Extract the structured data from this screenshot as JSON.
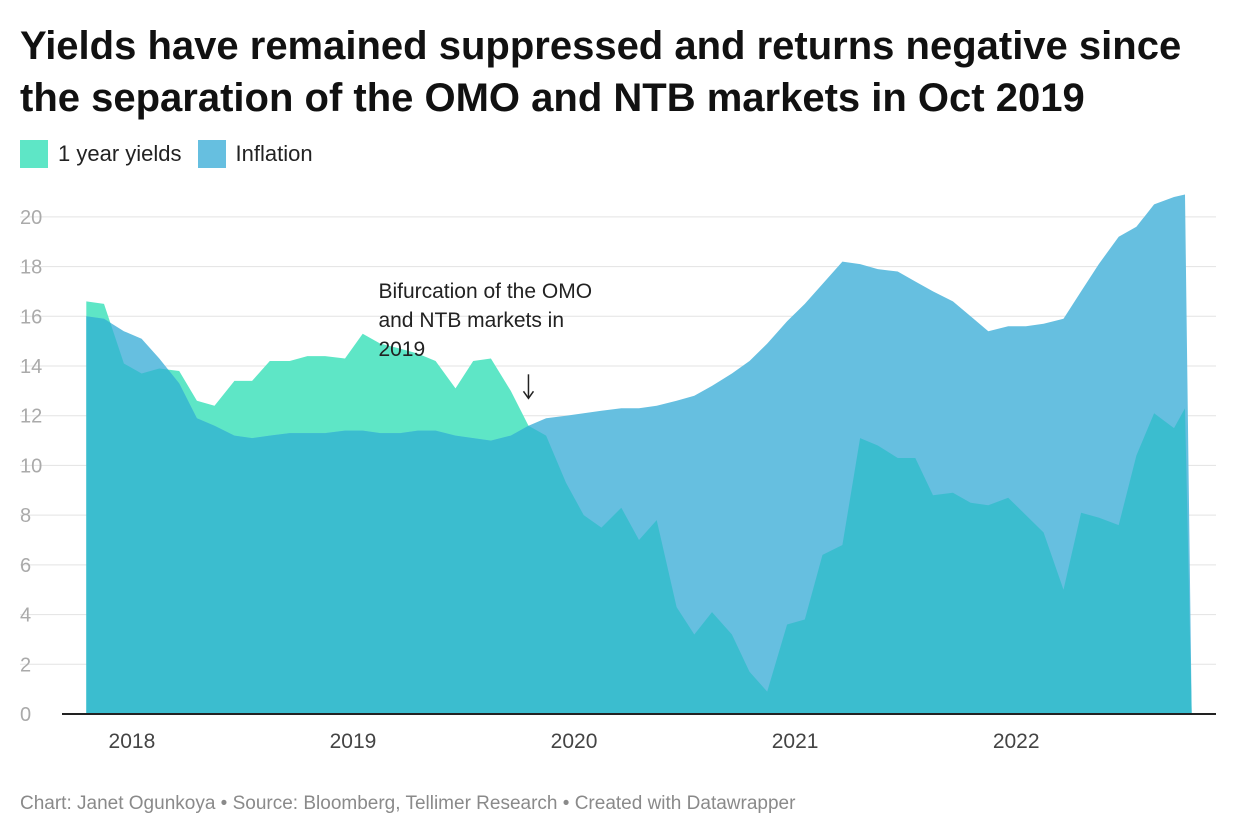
{
  "title": "Yields have remained suppressed and returns negative since the separation of the OMO and NTB markets in Oct 2019",
  "footer": "Chart: Janet Ogunkoya • Source: Bloomberg, Tellimer Research • Created with Datawrapper",
  "colors": {
    "yields": "#5ee6c6",
    "inflation": "#66bfe0",
    "overlap": "#3bbdcf",
    "grid": "#e3e3e3",
    "axis": "#222222"
  },
  "legend": [
    {
      "label": "1 year yields",
      "color": "#5ee6c6"
    },
    {
      "label": "Inflation",
      "color": "#66bfe0"
    }
  ],
  "chart_data": {
    "type": "area",
    "x_unit": "year",
    "x_tick_labels": [
      "2018",
      "2019",
      "2020",
      "2021",
      "2022"
    ],
    "x_tick_values": [
      2018,
      2019,
      2020,
      2021,
      2022
    ],
    "xlim": [
      2017.72,
      2022.94
    ],
    "ylim": [
      0,
      21
    ],
    "y_ticks": [
      0,
      2,
      4,
      6,
      8,
      10,
      12,
      14,
      16,
      18,
      20
    ],
    "grid": true,
    "legend_position": "top-left",
    "annotation": {
      "text_lines": [
        "Bifurcation of the OMO",
        "and NTB markets in",
        "2019"
      ],
      "x": 2019.83,
      "y": 12.7
    },
    "series": [
      {
        "name": "1 year yields",
        "x": [
          2017.83,
          2017.91,
          2018.0,
          2018.08,
          2018.16,
          2018.25,
          2018.33,
          2018.41,
          2018.5,
          2018.58,
          2018.66,
          2018.75,
          2018.83,
          2018.91,
          2019.0,
          2019.08,
          2019.16,
          2019.25,
          2019.33,
          2019.41,
          2019.5,
          2019.58,
          2019.66,
          2019.75,
          2019.83,
          2019.91,
          2020.0,
          2020.08,
          2020.16,
          2020.25,
          2020.33,
          2020.41,
          2020.5,
          2020.58,
          2020.66,
          2020.75,
          2020.83,
          2020.91,
          2021.0,
          2021.08,
          2021.16,
          2021.25,
          2021.33,
          2021.41,
          2021.5,
          2021.58,
          2021.66,
          2021.75,
          2021.83,
          2021.91,
          2022.0,
          2022.08,
          2022.16,
          2022.25,
          2022.33,
          2022.41,
          2022.5,
          2022.58,
          2022.66,
          2022.75,
          2022.8,
          2022.83
        ],
        "values": [
          16.6,
          16.5,
          14.1,
          13.7,
          13.9,
          13.8,
          12.6,
          12.4,
          13.4,
          13.4,
          14.2,
          14.2,
          14.4,
          14.4,
          14.3,
          15.3,
          14.9,
          14.7,
          14.5,
          14.2,
          13.1,
          14.2,
          14.3,
          13.0,
          11.6,
          11.2,
          9.3,
          8.0,
          7.5,
          8.3,
          7.0,
          7.8,
          4.3,
          3.2,
          4.1,
          3.2,
          1.7,
          0.9,
          3.6,
          3.8,
          6.4,
          6.8,
          11.1,
          10.8,
          10.3,
          10.3,
          8.8,
          8.9,
          8.5,
          8.4,
          8.7,
          8.0,
          7.3,
          5.0,
          8.1,
          7.9,
          7.6,
          10.4,
          12.1,
          11.5,
          12.3,
          0
        ]
      },
      {
        "name": "Inflation",
        "x": [
          2017.83,
          2017.91,
          2018.0,
          2018.08,
          2018.16,
          2018.25,
          2018.33,
          2018.41,
          2018.5,
          2018.58,
          2018.66,
          2018.75,
          2018.83,
          2018.91,
          2019.0,
          2019.08,
          2019.16,
          2019.25,
          2019.33,
          2019.41,
          2019.5,
          2019.58,
          2019.66,
          2019.75,
          2019.83,
          2019.91,
          2020.0,
          2020.08,
          2020.16,
          2020.25,
          2020.33,
          2020.41,
          2020.5,
          2020.58,
          2020.66,
          2020.75,
          2020.83,
          2020.91,
          2021.0,
          2021.08,
          2021.16,
          2021.25,
          2021.33,
          2021.41,
          2021.5,
          2021.58,
          2021.66,
          2021.75,
          2021.83,
          2021.91,
          2022.0,
          2022.08,
          2022.16,
          2022.25,
          2022.33,
          2022.41,
          2022.5,
          2022.58,
          2022.66,
          2022.75,
          2022.8,
          2022.83
        ],
        "values": [
          16.0,
          15.9,
          15.4,
          15.1,
          14.3,
          13.3,
          11.9,
          11.6,
          11.2,
          11.1,
          11.2,
          11.3,
          11.3,
          11.3,
          11.4,
          11.4,
          11.3,
          11.3,
          11.4,
          11.4,
          11.2,
          11.1,
          11.0,
          11.2,
          11.6,
          11.9,
          12.0,
          12.1,
          12.2,
          12.3,
          12.3,
          12.4,
          12.6,
          12.8,
          13.2,
          13.7,
          14.2,
          14.9,
          15.8,
          16.5,
          17.3,
          18.2,
          18.1,
          17.9,
          17.8,
          17.4,
          17.0,
          16.6,
          16.0,
          15.4,
          15.6,
          15.6,
          15.7,
          15.9,
          17.0,
          18.1,
          19.2,
          19.6,
          20.5,
          20.8,
          20.9,
          0
        ]
      }
    ]
  }
}
